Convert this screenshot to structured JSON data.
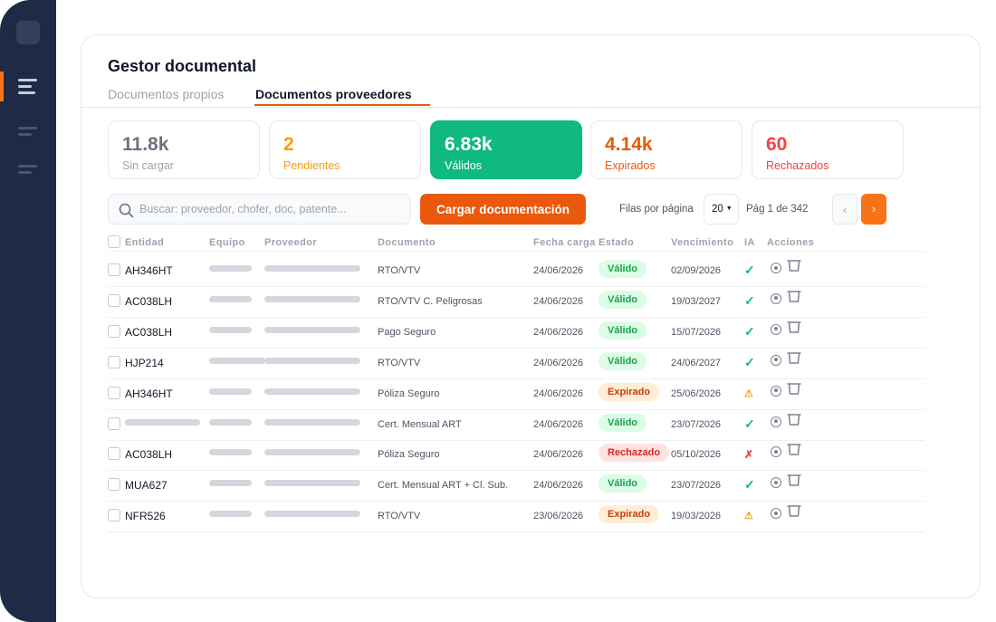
{
  "app": {
    "title": "Gestor documental",
    "tabs": [
      {
        "label": "Documentos propios",
        "active": false
      },
      {
        "label": "Documentos proveedores",
        "active": true
      }
    ]
  },
  "colors": {
    "accent": "#ea580c",
    "sidebar": "#1e2a46",
    "valid": "#10b981",
    "expired": "#ea580c",
    "rejected": "#ef4444",
    "pending": "#f59e0b"
  },
  "stats": [
    {
      "value": "11.8k",
      "label": "Sin cargar"
    },
    {
      "value": "2",
      "label": "Pendientes"
    },
    {
      "value": "6.83k",
      "label": "Válidos",
      "selected": true
    },
    {
      "value": "4.14k",
      "label": "Expirados"
    },
    {
      "value": "60",
      "label": "Rechazados"
    }
  ],
  "toolbar": {
    "search_placeholder": "Buscar: proveedor, chofer, doc, patente...",
    "search_icon": "search-icon",
    "upload_label": "Cargar documentación",
    "rows_per_page_label": "Filas por página",
    "rows_per_page_value": "20",
    "page_info": "Pág 1 de 342",
    "prev_label": "‹",
    "next_label": "›"
  },
  "table": {
    "columns": [
      "Entidad",
      "Equipo",
      "Proveedor",
      "Documento",
      "Fecha carga",
      "Estado",
      "Vencimiento",
      "IA",
      "Acciones"
    ],
    "rows": [
      {
        "entidad": "AH346HT",
        "documento": "RTO/VTV",
        "fecha": "24/06/2026",
        "estado": "Válido",
        "estado_kind": "valid",
        "vencimiento": "02/09/2026",
        "ia": "✓",
        "ia_kind": "ok"
      },
      {
        "entidad": "AC038LH",
        "documento": "RTO/VTV C. Peligrosas",
        "fecha": "24/06/2026",
        "estado": "Válido",
        "estado_kind": "valid",
        "vencimiento": "19/03/2027",
        "ia": "✓",
        "ia_kind": "ok"
      },
      {
        "entidad": "AC038LH",
        "documento": "Pago Seguro",
        "fecha": "24/06/2026",
        "estado": "Válido",
        "estado_kind": "valid",
        "vencimiento": "15/07/2026",
        "ia": "✓",
        "ia_kind": "ok"
      },
      {
        "entidad": "HJP214",
        "documento": "RTO/VTV",
        "fecha": "24/06/2026",
        "estado": "Válido",
        "estado_kind": "valid",
        "vencimiento": "24/06/2027",
        "ia": "✓",
        "ia_kind": "ok"
      },
      {
        "entidad": "AH346HT",
        "documento": "Póliza Seguro",
        "fecha": "24/06/2026",
        "estado": "Expirado",
        "estado_kind": "expired",
        "vencimiento": "25/06/2026",
        "ia": "⚠",
        "ia_kind": "warn"
      },
      {
        "entidad": "",
        "documento": "Cert. Mensual ART",
        "fecha": "24/06/2026",
        "estado": "Válido",
        "estado_kind": "valid",
        "vencimiento": "23/07/2026",
        "ia": "✓",
        "ia_kind": "ok"
      },
      {
        "entidad": "AC038LH",
        "documento": "Póliza Seguro",
        "fecha": "24/06/2026",
        "estado": "Rechazado",
        "estado_kind": "rejected",
        "vencimiento": "05/10/2026",
        "ia": "✗",
        "ia_kind": "x"
      },
      {
        "entidad": "MUA627",
        "documento": "Cert. Mensual ART + Cl. Sub.",
        "fecha": "24/06/2026",
        "estado": "Válido",
        "estado_kind": "valid",
        "vencimiento": "23/07/2026",
        "ia": "✓",
        "ia_kind": "ok"
      },
      {
        "entidad": "NFR526",
        "documento": "RTO/VTV",
        "fecha": "23/06/2026",
        "estado": "Expirado",
        "estado_kind": "expired",
        "vencimiento": "19/03/2026",
        "ia": "⚠",
        "ia_kind": "warn"
      }
    ]
  }
}
